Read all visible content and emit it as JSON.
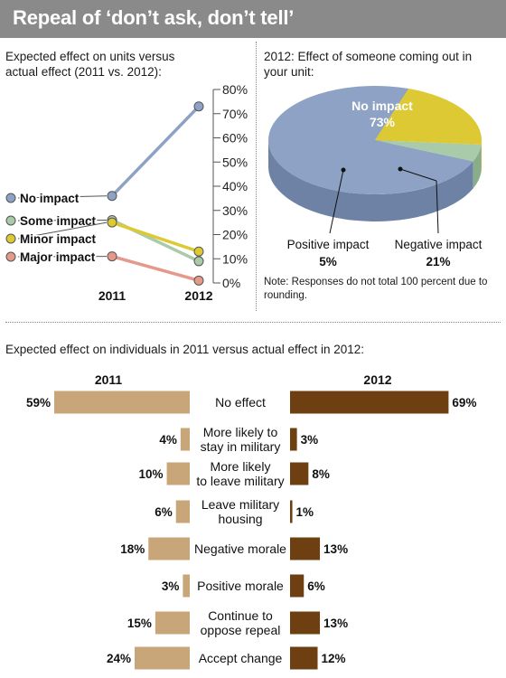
{
  "title": "Repeal of ‘don’t ask, don’t tell’",
  "colors": {
    "title_bar": "#8a8a8a",
    "no_impact": "#8da2c4",
    "some_impact": "#a9cba9",
    "minor_impact": "#ddc934",
    "major_impact": "#e4998a",
    "bar_2011": "#c9a679",
    "bar_2012": "#6e3f10"
  },
  "chart_data": [
    {
      "type": "line",
      "title": "Expected effect on units versus actual effect (2011 vs. 2012):",
      "x": [
        "2011",
        "2012"
      ],
      "y_ticks": [
        "0%",
        "10%",
        "20%",
        "30%",
        "40%",
        "50%",
        "60%",
        "70%",
        "80%"
      ],
      "ylim": [
        0,
        80
      ],
      "series": [
        {
          "name": "No impact",
          "values": [
            36,
            73
          ]
        },
        {
          "name": "Some impact",
          "values": [
            26,
            9
          ]
        },
        {
          "name": "Minor impact",
          "values": [
            25,
            13
          ]
        },
        {
          "name": "Major impact",
          "values": [
            11,
            1
          ]
        }
      ],
      "grid": false,
      "legend": "left"
    },
    {
      "type": "pie",
      "title": "2012: Effect of someone coming out in your unit:",
      "slices": [
        {
          "name": "No impact",
          "value": 73,
          "value_label": "73%"
        },
        {
          "name": "Positive impact",
          "value": 5,
          "value_label": "5%"
        },
        {
          "name": "Negative impact",
          "value": 21,
          "value_label": "21%"
        }
      ],
      "note": "Note: Responses do not total 100 percent due to rounding."
    },
    {
      "type": "bar",
      "title": "Expected effect on individuals in 2011 versus actual effect in 2012:",
      "series_labels": [
        "2011",
        "2012"
      ],
      "categories": [
        [
          "No effect"
        ],
        [
          "More likely to",
          "stay in military"
        ],
        [
          "More likely",
          "to leave military"
        ],
        [
          "Leave military",
          "housing"
        ],
        [
          "Negative morale"
        ],
        [
          "Positive morale"
        ],
        [
          "Continue to",
          "oppose repeal"
        ],
        [
          "Accept change"
        ]
      ],
      "values_2011": [
        59,
        4,
        10,
        6,
        18,
        3,
        15,
        24
      ],
      "values_2012": [
        69,
        3,
        8,
        1,
        13,
        6,
        13,
        12
      ]
    }
  ]
}
